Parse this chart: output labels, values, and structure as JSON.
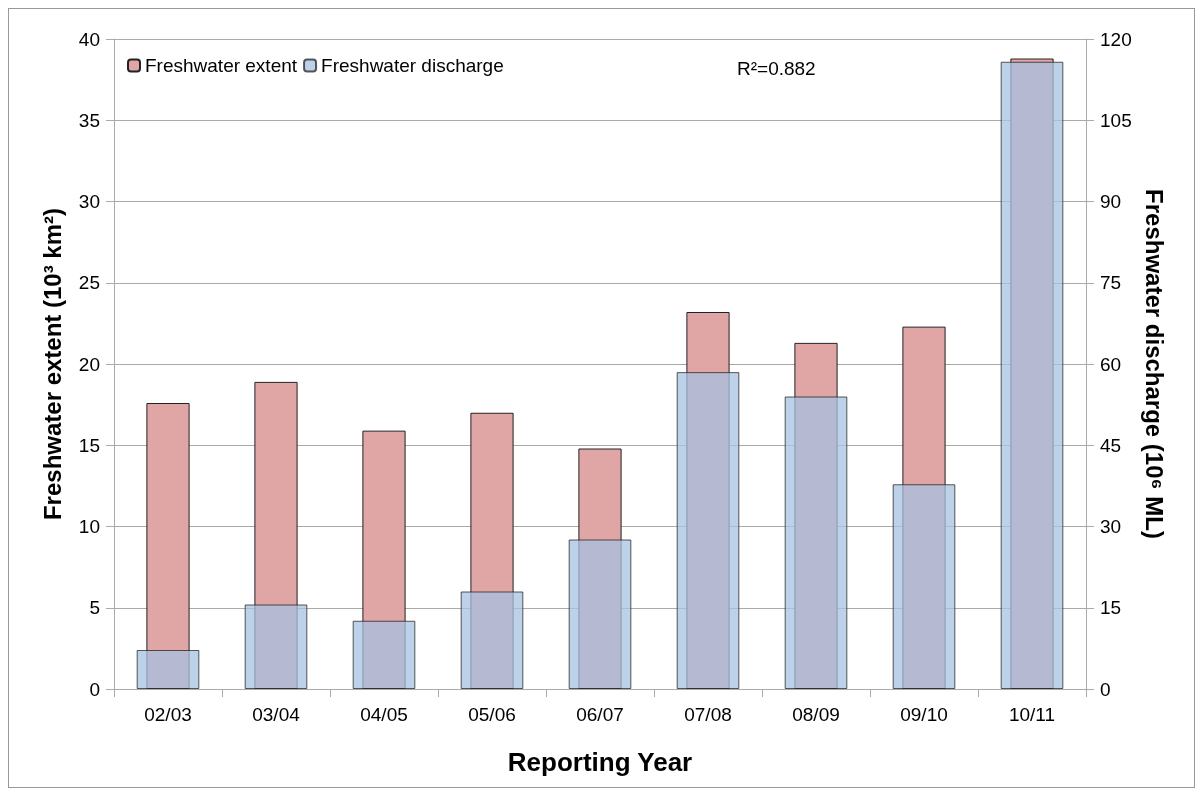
{
  "chart_data": {
    "type": "bar",
    "categories": [
      "02/03",
      "03/04",
      "04/05",
      "05/06",
      "06/07",
      "07/08",
      "08/09",
      "09/10",
      "10/11"
    ],
    "series": [
      {
        "name": "Freshwater extent",
        "color": "#e0a5a5",
        "values": [
          17.6,
          18.9,
          15.9,
          17.0,
          14.8,
          23.2,
          21.3,
          22.3,
          38.8
        ]
      },
      {
        "name": "Freshwater discharge",
        "color": "#a7c1e1",
        "axis": "y2",
        "values": [
          7.2,
          15.6,
          12.6,
          18.0,
          27.6,
          58.5,
          54.0,
          37.8,
          115.8
        ]
      }
    ],
    "xlabel": "Reporting Year",
    "ylabel": "Freshwater extent (10³ km²)",
    "y2label": "Freshwater discharge (10⁶ ML)",
    "ylim": [
      0,
      40
    ],
    "yticks": [
      0,
      5,
      10,
      15,
      20,
      25,
      30,
      35,
      40
    ],
    "y2lim": [
      0,
      120
    ],
    "y2ticks": [
      0,
      15,
      30,
      45,
      60,
      75,
      90,
      105,
      120
    ],
    "annotations": [
      "R²=0.882"
    ],
    "grid": "y",
    "legend": "top left"
  }
}
